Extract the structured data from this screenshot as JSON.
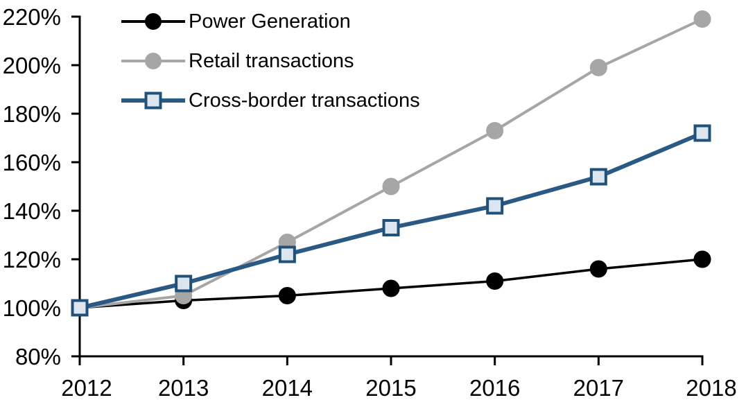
{
  "chart_data": {
    "type": "line",
    "title": "",
    "xlabel": "",
    "ylabel": "",
    "grid": false,
    "legend_position": "top-left",
    "x_labels": [
      "2012",
      "2013",
      "2014",
      "2015",
      "2016",
      "2017",
      "2018"
    ],
    "y_axis": {
      "min": 80,
      "max": 220,
      "step": 20,
      "format": "percent",
      "tick_labels": [
        "80%",
        "100%",
        "120%",
        "140%",
        "160%",
        "180%",
        "200%",
        "220%"
      ]
    },
    "series": [
      {
        "name": "Power Generation",
        "values": [
          100,
          103,
          105,
          108,
          111,
          116,
          120
        ],
        "color": "#000000",
        "line_width": 3.5,
        "marker": "circle",
        "marker_fill": "#000000",
        "marker_stroke": "#000000"
      },
      {
        "name": "Retail transactions",
        "values": [
          100,
          105,
          127,
          150,
          173,
          199,
          219
        ],
        "color": "#a6a6a6",
        "line_width": 4,
        "marker": "circle",
        "marker_fill": "#a6a6a6",
        "marker_stroke": "#a6a6a6"
      },
      {
        "name": "Cross-border transactions",
        "values": [
          100,
          110,
          122,
          133,
          142,
          154,
          172
        ],
        "color": "#2a5a84",
        "line_width": 6,
        "marker": "square",
        "marker_fill": "#dce6f1",
        "marker_stroke": "#215079"
      }
    ],
    "axis_color": "#000000",
    "tick_label_color": "#000000"
  }
}
